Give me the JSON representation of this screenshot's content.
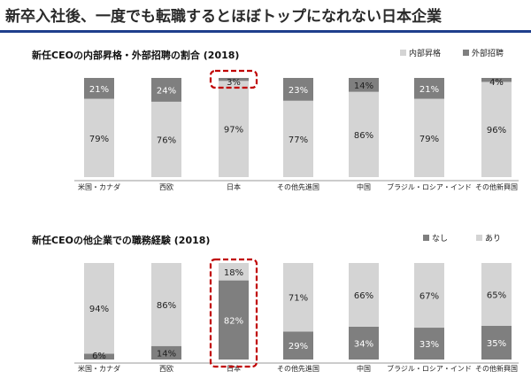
{
  "page": {
    "title": "新卒入社後、一度でも転職するとほぼトップになれない日本企業"
  },
  "chart_data": [
    {
      "type": "bar",
      "stacked": true,
      "title": "新任CEOの内部昇格・外部招聘の割合 (2018)",
      "categories": [
        "米国・カナダ",
        "西欧",
        "日本",
        "その他先進国",
        "中国",
        "ブラジル・ロシア・インド",
        "その他新興国"
      ],
      "series": [
        {
          "name": "内部昇格",
          "values": [
            79,
            76,
            97,
            77,
            86,
            79,
            96
          ],
          "labels": [
            "79%",
            "76%",
            "97%",
            "77%",
            "86%",
            "79%",
            "96%"
          ],
          "color": "#d4d4d4",
          "position": "bottom"
        },
        {
          "name": "外部招聘",
          "values": [
            21,
            24,
            3,
            23,
            14,
            21,
            4
          ],
          "labels": [
            "21%",
            "24%",
            "3%",
            "23%",
            "14%",
            "21%",
            "4%"
          ],
          "color": "#7f7f7f",
          "position": "top"
        }
      ],
      "ylim": [
        0,
        100
      ],
      "legend": "top-right",
      "highlight_category": "日本",
      "highlight_series": "外部招聘",
      "highlight_color": "#c00000"
    },
    {
      "type": "bar",
      "stacked": true,
      "title": "新任CEOの他企業での職務経験 (2018)",
      "categories": [
        "米国・カナダ",
        "西欧",
        "日本",
        "その他先進国",
        "中国",
        "ブラジル・ロシア・インド",
        "その他新興国"
      ],
      "series": [
        {
          "name": "なし",
          "values": [
            6,
            14,
            82,
            29,
            34,
            33,
            35
          ],
          "labels": [
            "6%",
            "14%",
            "82%",
            "29%",
            "34%",
            "33%",
            "35%"
          ],
          "color": "#7f7f7f",
          "position": "bottom"
        },
        {
          "name": "あり",
          "values": [
            94,
            86,
            18,
            71,
            66,
            67,
            65
          ],
          "labels": [
            "94%",
            "86%",
            "18%",
            "71%",
            "66%",
            "67%",
            "65%"
          ],
          "color": "#d4d4d4",
          "position": "top"
        }
      ],
      "ylim": [
        0,
        100
      ],
      "legend": "top-right",
      "highlight_category": "日本",
      "highlight_series": "all",
      "highlight_color": "#c00000"
    }
  ]
}
